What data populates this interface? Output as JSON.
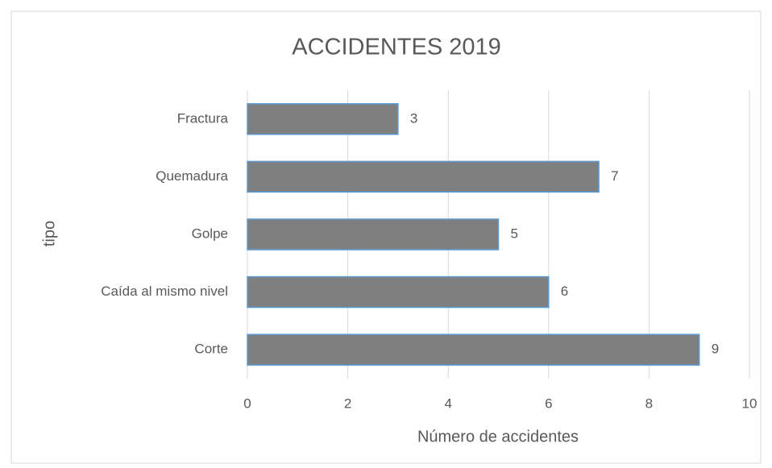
{
  "chart_data": {
    "type": "bar",
    "orientation": "horizontal",
    "title": "ACCIDENTES 2019",
    "categories": [
      "Fractura",
      "Quemadura",
      "Golpe",
      "Caída al mismo nivel",
      "Corte"
    ],
    "values": [
      3,
      7,
      5,
      6,
      9
    ],
    "color": "#7f7f7f",
    "edge_color": "#5b9bd5",
    "xlim": [
      0,
      10
    ],
    "xticks": [
      0,
      2,
      4,
      6,
      8,
      10
    ],
    "grid": true,
    "x_label": "Número de accidentes",
    "y_label": "tipo"
  }
}
